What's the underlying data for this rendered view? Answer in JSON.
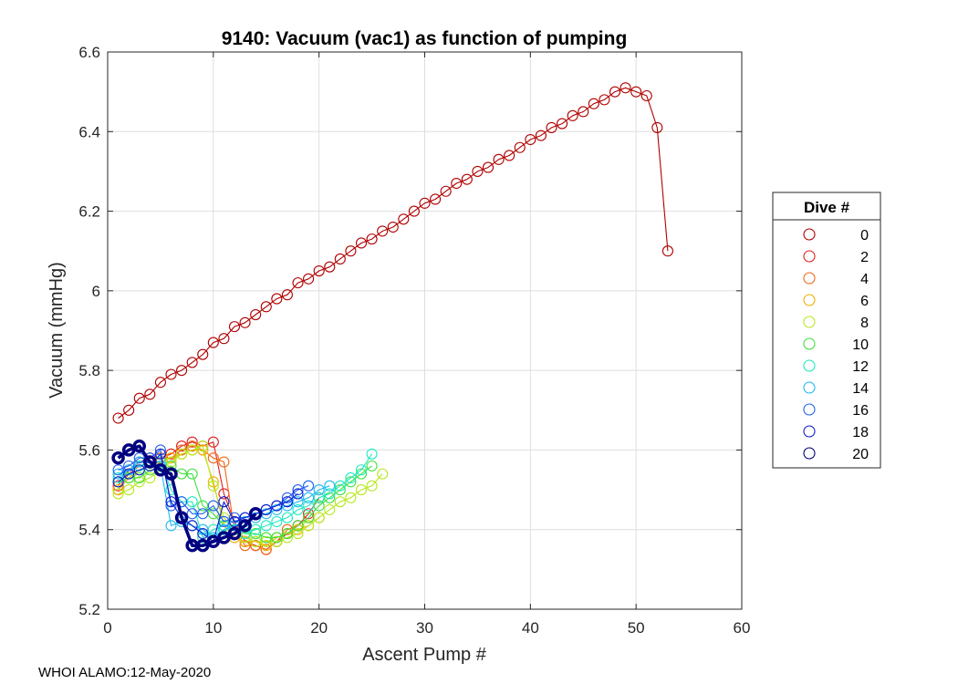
{
  "chart_data": {
    "type": "line",
    "title": "9140: Vacuum (vac1) as function of pumping",
    "xlabel": "Ascent Pump #",
    "ylabel": "Vacuum (mmHg)",
    "xlim": [
      0,
      60
    ],
    "ylim": [
      5.2,
      6.6
    ],
    "xticks": [
      0,
      10,
      20,
      30,
      40,
      50,
      60
    ],
    "yticks": [
      5.2,
      5.4,
      5.6,
      5.8,
      6,
      6.2,
      6.4,
      6.6
    ],
    "xtick_labels": [
      "0",
      "10",
      "20",
      "30",
      "40",
      "50",
      "60"
    ],
    "ytick_labels": [
      "5.2",
      "5.4",
      "5.6",
      "5.8",
      "6",
      "6.2",
      "6.4",
      "6.6"
    ],
    "grid": true,
    "legend": {
      "title": "Dive #",
      "position": "outside-right"
    },
    "series": [
      {
        "name": "0",
        "color": "#b00000",
        "x": [
          1,
          2,
          3,
          4,
          5,
          6,
          7,
          8,
          9,
          10,
          11,
          12,
          13,
          14,
          15,
          16,
          17,
          18,
          19,
          20,
          21,
          22,
          23,
          24,
          25,
          26,
          27,
          28,
          29,
          30,
          31,
          32,
          33,
          34,
          35,
          36,
          37,
          38,
          39,
          40,
          41,
          42,
          43,
          44,
          45,
          46,
          47,
          48,
          49,
          50,
          51,
          52,
          53
        ],
        "y": [
          5.68,
          5.7,
          5.73,
          5.74,
          5.77,
          5.79,
          5.8,
          5.82,
          5.84,
          5.87,
          5.88,
          5.91,
          5.92,
          5.94,
          5.96,
          5.98,
          5.99,
          6.02,
          6.03,
          6.05,
          6.06,
          6.08,
          6.1,
          6.12,
          6.13,
          6.15,
          6.16,
          6.18,
          6.2,
          6.22,
          6.23,
          6.25,
          6.27,
          6.28,
          6.3,
          6.31,
          6.33,
          6.34,
          6.36,
          6.38,
          6.39,
          6.41,
          6.42,
          6.44,
          6.45,
          6.47,
          6.48,
          6.5,
          6.51,
          6.5,
          6.49,
          6.41,
          6.1
        ]
      },
      {
        "name": "2",
        "color": "#e02020",
        "x": [
          1,
          2,
          3,
          4,
          5,
          6,
          7,
          8,
          9,
          10,
          11,
          12,
          13,
          14,
          15,
          16,
          17,
          18,
          19,
          20
        ],
        "y": [
          5.51,
          5.55,
          5.57,
          5.58,
          5.58,
          5.59,
          5.61,
          5.62,
          5.61,
          5.62,
          5.49,
          5.42,
          5.37,
          5.36,
          5.35,
          5.37,
          5.39,
          5.41,
          5.44,
          5.48
        ]
      },
      {
        "name": "4",
        "color": "#f06818",
        "x": [
          1,
          2,
          3,
          4,
          5,
          6,
          7,
          8,
          9,
          10,
          11,
          12,
          13,
          14,
          15,
          16,
          17,
          18,
          19
        ],
        "y": [
          5.5,
          5.54,
          5.56,
          5.57,
          5.58,
          5.58,
          5.6,
          5.61,
          5.6,
          5.58,
          5.57,
          5.4,
          5.36,
          5.36,
          5.35,
          5.37,
          5.4,
          5.41,
          5.43
        ]
      },
      {
        "name": "6",
        "color": "#f0b000",
        "x": [
          1,
          2,
          3,
          4,
          5,
          6,
          7,
          8,
          9,
          10,
          11,
          12,
          13,
          14,
          15,
          16,
          17,
          18,
          19,
          20
        ],
        "y": [
          5.5,
          5.53,
          5.55,
          5.56,
          5.57,
          5.58,
          5.59,
          5.6,
          5.6,
          5.52,
          5.41,
          5.38,
          5.37,
          5.37,
          5.36,
          5.38,
          5.39,
          5.4,
          5.41,
          5.43
        ]
      },
      {
        "name": "8",
        "color": "#b8e820",
        "x": [
          1,
          2,
          3,
          4,
          5,
          6,
          7,
          8,
          9,
          10,
          11,
          12,
          13,
          14,
          15,
          16,
          17,
          18,
          19,
          20,
          21,
          22,
          23,
          24,
          25,
          26
        ],
        "y": [
          5.49,
          5.5,
          5.52,
          5.53,
          5.55,
          5.57,
          5.59,
          5.6,
          5.61,
          5.51,
          5.43,
          5.4,
          5.38,
          5.37,
          5.37,
          5.37,
          5.38,
          5.39,
          5.41,
          5.43,
          5.45,
          5.47,
          5.48,
          5.5,
          5.51,
          5.54
        ]
      },
      {
        "name": "10",
        "color": "#40e040",
        "x": [
          1,
          2,
          3,
          4,
          5,
          6,
          7,
          8,
          9,
          10,
          11,
          12,
          13,
          14,
          15,
          16,
          17,
          18,
          19,
          20,
          21,
          22,
          23,
          24,
          25
        ],
        "y": [
          5.52,
          5.53,
          5.53,
          5.55,
          5.55,
          5.56,
          5.54,
          5.54,
          5.46,
          5.44,
          5.41,
          5.4,
          5.39,
          5.39,
          5.38,
          5.38,
          5.39,
          5.41,
          5.43,
          5.46,
          5.48,
          5.5,
          5.52,
          5.54,
          5.56
        ]
      },
      {
        "name": "12",
        "color": "#20e8c0",
        "x": [
          1,
          2,
          3,
          4,
          5,
          6,
          7,
          8,
          9,
          10,
          11,
          12,
          13,
          14,
          15,
          16,
          17,
          18,
          19,
          20,
          21,
          22,
          23,
          24,
          25
        ],
        "y": [
          5.53,
          5.55,
          5.56,
          5.57,
          5.57,
          5.5,
          5.47,
          5.47,
          5.38,
          5.4,
          5.41,
          5.4,
          5.39,
          5.4,
          5.41,
          5.42,
          5.43,
          5.45,
          5.46,
          5.48,
          5.49,
          5.51,
          5.53,
          5.55,
          5.59
        ]
      },
      {
        "name": "14",
        "color": "#20b8f0",
        "x": [
          1,
          2,
          3,
          4,
          5,
          6,
          7,
          8,
          9,
          10,
          11,
          12,
          13,
          14,
          15,
          16,
          17,
          18,
          19,
          20,
          21
        ],
        "y": [
          5.54,
          5.55,
          5.57,
          5.57,
          5.56,
          5.41,
          5.42,
          5.41,
          5.4,
          5.38,
          5.4,
          5.41,
          5.42,
          5.43,
          5.44,
          5.45,
          5.46,
          5.47,
          5.48,
          5.5,
          5.51
        ]
      },
      {
        "name": "16",
        "color": "#2060f0",
        "x": [
          1,
          2,
          3,
          4,
          5,
          6,
          7,
          8,
          9,
          10,
          11,
          12,
          13,
          14,
          15,
          16,
          17,
          18,
          19
        ],
        "y": [
          5.55,
          5.56,
          5.58,
          5.58,
          5.6,
          5.46,
          5.47,
          5.44,
          5.44,
          5.46,
          5.42,
          5.43,
          5.43,
          5.44,
          5.45,
          5.46,
          5.48,
          5.5,
          5.51
        ]
      },
      {
        "name": "18",
        "color": "#1020d0",
        "x": [
          1,
          2,
          3,
          4,
          5,
          6,
          7,
          8,
          9,
          10,
          11,
          12,
          13,
          14,
          15,
          16,
          17,
          18
        ],
        "y": [
          5.52,
          5.54,
          5.55,
          5.56,
          5.59,
          5.47,
          5.43,
          5.41,
          5.39,
          5.37,
          5.47,
          5.42,
          5.43,
          5.44,
          5.45,
          5.46,
          5.47,
          5.49
        ]
      },
      {
        "name": "20",
        "color": "#000080",
        "bold": true,
        "x": [
          1,
          2,
          3,
          4,
          5,
          6,
          7,
          8,
          9,
          10,
          11,
          12,
          13,
          14
        ],
        "y": [
          5.58,
          5.6,
          5.61,
          5.57,
          5.55,
          5.54,
          5.43,
          5.36,
          5.36,
          5.37,
          5.38,
          5.39,
          5.41,
          5.44
        ]
      }
    ]
  },
  "footer": "WHOI ALAMO:12-May-2020"
}
